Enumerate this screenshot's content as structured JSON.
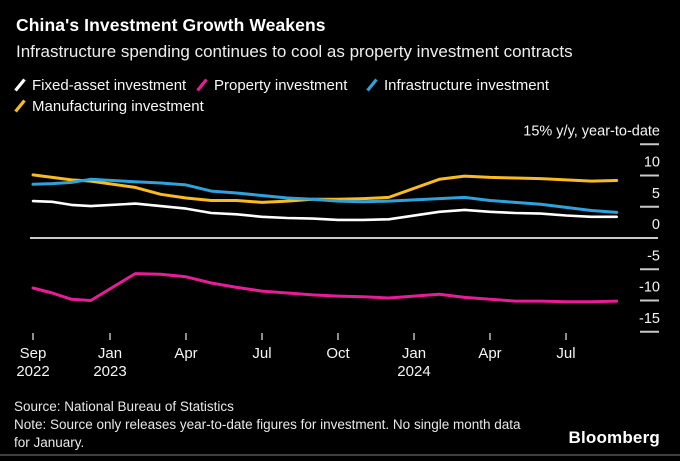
{
  "header": {
    "title": "China's Investment Growth Weakens",
    "subtitle": "Infrastructure spending continues to cool as property investment contracts"
  },
  "legend": {
    "items": [
      {
        "label": "Fixed-asset investment",
        "color": "#ffffff"
      },
      {
        "label": "Property investment",
        "color": "#e81c96"
      },
      {
        "label": "Infrastructure investment",
        "color": "#2fa2dc"
      },
      {
        "label": "Manufacturing investment",
        "color": "#f9bb1d"
      }
    ]
  },
  "chart_data": {
    "type": "line",
    "unit_label": "15% y/y, year-to-date",
    "ylim": [
      -15,
      15
    ],
    "y_ticks": [
      {
        "value": 15,
        "label": ""
      },
      {
        "value": 10,
        "label": "10"
      },
      {
        "value": 5,
        "label": "5"
      },
      {
        "value": 0,
        "label": "0"
      },
      {
        "value": -5,
        "label": "-5"
      },
      {
        "value": -10,
        "label": "-10"
      },
      {
        "value": -15,
        "label": "-15"
      }
    ],
    "x_ticks": [
      {
        "label": "Sep",
        "year": "2022",
        "month_offset": 0
      },
      {
        "label": "Jan",
        "year": "2023",
        "month_offset": 4
      },
      {
        "label": "Apr",
        "year": "",
        "month_offset": 7
      },
      {
        "label": "Jul",
        "year": "",
        "month_offset": 10
      },
      {
        "label": "Oct",
        "year": "",
        "month_offset": 13
      },
      {
        "label": "Jan",
        "year": "2024",
        "month_offset": 16
      },
      {
        "label": "Apr",
        "year": "",
        "month_offset": 19
      },
      {
        "label": "Jul",
        "year": "",
        "month_offset": 22
      }
    ],
    "categories": [
      "Sep 2022",
      "Oct 2022",
      "Nov 2022",
      "Dec 2022",
      "Feb 2023",
      "Mar 2023",
      "Apr 2023",
      "May 2023",
      "Jun 2023",
      "Jul 2023",
      "Aug 2023",
      "Sep 2023",
      "Oct 2023",
      "Nov 2023",
      "Dec 2023",
      "Feb 2024",
      "Mar 2024",
      "Apr 2024",
      "May 2024",
      "Jun 2024",
      "Jul 2024",
      "Aug 2024",
      "Sep 2024"
    ],
    "month_offsets": [
      0,
      1,
      2,
      3,
      5,
      6,
      7,
      8,
      9,
      10,
      11,
      12,
      13,
      14,
      15,
      17,
      18,
      19,
      20,
      21,
      22,
      23,
      24
    ],
    "series": [
      {
        "name": "Manufacturing investment",
        "color": "#f9bb1d",
        "values": [
          10.1,
          9.7,
          9.3,
          9.1,
          8.1,
          7.0,
          6.4,
          6.0,
          6.0,
          5.7,
          5.9,
          6.2,
          6.2,
          6.3,
          6.5,
          9.4,
          9.9,
          9.7,
          9.6,
          9.5,
          9.3,
          9.1,
          9.2
        ]
      },
      {
        "name": "Infrastructure investment",
        "color": "#2fa2dc",
        "values": [
          8.6,
          8.7,
          8.9,
          9.4,
          9.0,
          8.8,
          8.5,
          7.5,
          7.2,
          6.8,
          6.4,
          6.2,
          5.9,
          5.8,
          5.9,
          6.3,
          6.5,
          6.0,
          5.7,
          5.4,
          4.9,
          4.4,
          4.1
        ]
      },
      {
        "name": "Fixed-asset investment",
        "color": "#ffffff",
        "values": [
          5.9,
          5.8,
          5.3,
          5.1,
          5.5,
          5.1,
          4.7,
          4.0,
          3.8,
          3.4,
          3.2,
          3.1,
          2.9,
          2.9,
          3.0,
          4.2,
          4.5,
          4.2,
          4.0,
          3.9,
          3.6,
          3.4,
          3.4
        ]
      },
      {
        "name": "Property investment",
        "color": "#e81c96",
        "values": [
          -8.0,
          -8.8,
          -9.8,
          -10.0,
          -5.7,
          -5.8,
          -6.2,
          -7.2,
          -7.9,
          -8.5,
          -8.8,
          -9.1,
          -9.3,
          -9.4,
          -9.6,
          -9.0,
          -9.5,
          -9.8,
          -10.1,
          -10.1,
          -10.2,
          -10.2,
          -10.1
        ]
      }
    ]
  },
  "footer": {
    "source": "Source: National Bureau of Statistics",
    "note": "Note: Source only releases year-to-date figures for investment. No single month data for January.",
    "logo": "Bloomberg"
  }
}
